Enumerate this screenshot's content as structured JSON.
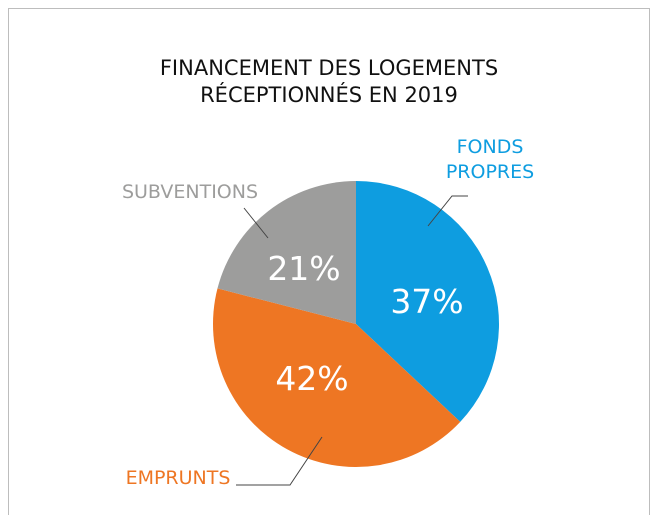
{
  "chart_data": {
    "type": "pie",
    "title": [
      "FINANCEMENT DES LOGEMENTS",
      "RÉCEPTIONNÉS EN 2019"
    ],
    "categories": [
      "FONDS PROPRES",
      "EMPRUNTS",
      "SUBVENTIONS"
    ],
    "values": [
      37,
      42,
      21
    ],
    "value_labels": [
      "37%",
      "42%",
      "21%"
    ],
    "colors": [
      "#0e9de0",
      "#ee7623",
      "#9d9d9c"
    ]
  }
}
